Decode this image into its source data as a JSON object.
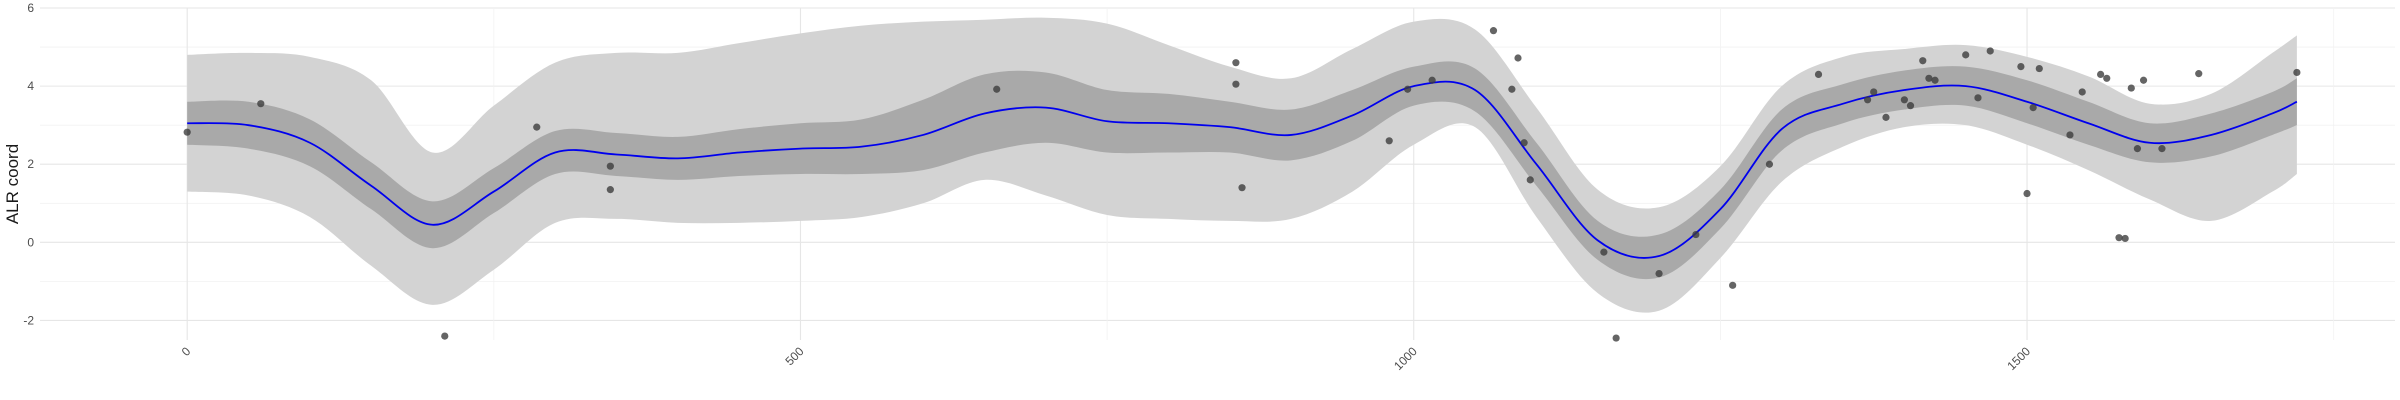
{
  "chart_data": {
    "type": "line",
    "title": "",
    "xlabel": "",
    "ylabel": "ALR coord",
    "xlim": [
      -120,
      1800
    ],
    "ylim": [
      -2.5,
      6
    ],
    "x_ticks": [
      0,
      500,
      1000,
      1500
    ],
    "y_ticks": [
      -2,
      0,
      2,
      4,
      6
    ],
    "grid": true,
    "colors": {
      "mean_line": "#0000ee",
      "inner_band": "#a9a9a9",
      "outer_band": "#d3d3d3",
      "points": "#3a3a3a"
    },
    "mean": {
      "x": [
        0,
        50,
        100,
        150,
        200,
        250,
        300,
        350,
        400,
        450,
        500,
        550,
        600,
        650,
        700,
        750,
        800,
        850,
        900,
        950,
        1000,
        1050,
        1100,
        1150,
        1200,
        1250,
        1300,
        1350,
        1400,
        1450,
        1500,
        1550,
        1600,
        1650,
        1700,
        1720
      ],
      "y": [
        3.05,
        3.0,
        2.55,
        1.45,
        0.45,
        1.3,
        2.3,
        2.25,
        2.15,
        2.3,
        2.4,
        2.45,
        2.75,
        3.3,
        3.45,
        3.1,
        3.05,
        2.95,
        2.75,
        3.25,
        4.0,
        3.9,
        2.0,
        0.05,
        -0.35,
        0.85,
        2.9,
        3.55,
        3.9,
        4.0,
        3.6,
        3.05,
        2.55,
        2.75,
        3.3,
        3.6
      ]
    },
    "inner_band": {
      "lower": [
        2.5,
        2.4,
        1.95,
        0.85,
        -0.15,
        0.75,
        1.75,
        1.7,
        1.6,
        1.7,
        1.75,
        1.75,
        1.85,
        2.3,
        2.55,
        2.3,
        2.3,
        2.3,
        2.1,
        2.6,
        3.5,
        3.35,
        1.45,
        -0.45,
        -0.9,
        0.35,
        2.35,
        3.05,
        3.4,
        3.5,
        3.05,
        2.5,
        2.05,
        2.2,
        2.75,
        3.0
      ],
      "upper": [
        3.6,
        3.6,
        3.15,
        2.05,
        1.05,
        1.9,
        2.85,
        2.8,
        2.7,
        2.9,
        3.05,
        3.15,
        3.65,
        4.3,
        4.35,
        3.9,
        3.8,
        3.6,
        3.4,
        3.9,
        4.5,
        4.45,
        2.55,
        0.55,
        0.2,
        1.35,
        3.4,
        4.05,
        4.4,
        4.5,
        4.15,
        3.6,
        3.05,
        3.3,
        3.85,
        4.2
      ]
    },
    "outer_band": {
      "lower": [
        1.3,
        1.2,
        0.65,
        -0.6,
        -1.6,
        -0.7,
        0.5,
        0.6,
        0.5,
        0.5,
        0.55,
        0.65,
        1.0,
        1.6,
        1.2,
        0.7,
        0.6,
        0.55,
        0.6,
        1.3,
        2.5,
        2.95,
        0.65,
        -1.3,
        -1.75,
        -0.4,
        1.55,
        2.45,
        2.95,
        3.0,
        2.5,
        1.85,
        1.1,
        0.55,
        1.3,
        1.75
      ],
      "upper": [
        4.8,
        4.85,
        4.75,
        4.15,
        2.3,
        3.5,
        4.6,
        4.85,
        4.85,
        5.1,
        5.35,
        5.55,
        5.65,
        5.7,
        5.75,
        5.6,
        5.05,
        4.5,
        4.2,
        4.95,
        5.65,
        5.45,
        3.45,
        1.35,
        0.9,
        1.95,
        4.0,
        4.75,
        4.95,
        5.05,
        4.75,
        4.25,
        3.55,
        3.8,
        4.85,
        5.3
      ]
    },
    "points": {
      "x": [
        0,
        60,
        210,
        285,
        345,
        345,
        660,
        855,
        855,
        860,
        980,
        995,
        1015,
        1065,
        1080,
        1085,
        1090,
        1095,
        1155,
        1165,
        1200,
        1230,
        1260,
        1290,
        1330,
        1370,
        1375,
        1385,
        1400,
        1405,
        1415,
        1420,
        1425,
        1450,
        1460,
        1470,
        1495,
        1500,
        1505,
        1510,
        1535,
        1545,
        1560,
        1565,
        1575,
        1580,
        1585,
        1590,
        1595,
        1610,
        1640,
        1720
      ],
      "y": [
        2.82,
        3.55,
        -2.4,
        2.95,
        1.35,
        1.95,
        3.92,
        4.05,
        4.6,
        1.4,
        2.6,
        3.92,
        4.15,
        5.42,
        3.92,
        4.72,
        2.55,
        1.6,
        -0.25,
        -2.45,
        -0.8,
        0.2,
        -1.1,
        2.0,
        4.3,
        3.65,
        3.85,
        3.2,
        3.65,
        3.5,
        4.65,
        4.2,
        4.15,
        4.8,
        3.7,
        4.9,
        4.5,
        1.25,
        3.45,
        4.45,
        2.75,
        3.85,
        4.3,
        4.2,
        0.12,
        0.1,
        3.95,
        2.4,
        4.15,
        2.4,
        4.32,
        4.35
      ]
    }
  }
}
